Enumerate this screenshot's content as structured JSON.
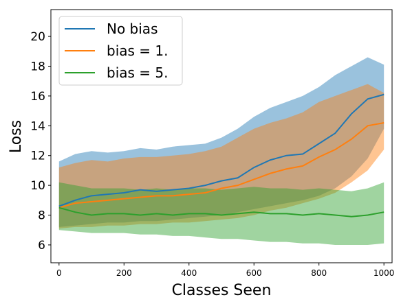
{
  "chart_data": {
    "type": "line",
    "xlabel": "Classes Seen",
    "ylabel": "Loss",
    "xlim": [
      -25,
      1025
    ],
    "ylim": [
      4.8,
      21.8
    ],
    "x_ticks": [
      0,
      200,
      400,
      600,
      800,
      1000
    ],
    "y_ticks": [
      6,
      8,
      10,
      12,
      14,
      16,
      18,
      20
    ],
    "legend_position": "top-left",
    "grid": false,
    "band": "shaded spread around each mean line",
    "x": [
      0,
      50,
      100,
      150,
      200,
      250,
      300,
      350,
      400,
      450,
      500,
      550,
      600,
      650,
      700,
      750,
      800,
      850,
      900,
      950,
      1000
    ],
    "series": [
      {
        "name": "No bias",
        "color": "#1f77b4",
        "values": [
          8.6,
          9.0,
          9.3,
          9.4,
          9.5,
          9.7,
          9.6,
          9.7,
          9.8,
          10.0,
          10.3,
          10.5,
          11.2,
          11.7,
          12.0,
          12.1,
          12.8,
          13.5,
          14.8,
          15.8,
          16.1
        ],
        "lower": [
          7.2,
          7.3,
          7.4,
          7.5,
          7.5,
          7.6,
          7.6,
          7.7,
          7.8,
          7.9,
          8.0,
          8.2,
          8.4,
          8.6,
          8.8,
          9.0,
          9.3,
          9.8,
          10.6,
          11.8,
          13.8
        ],
        "upper": [
          11.6,
          12.1,
          12.3,
          12.2,
          12.3,
          12.5,
          12.4,
          12.6,
          12.7,
          12.8,
          13.2,
          13.8,
          14.6,
          15.2,
          15.6,
          16.0,
          16.6,
          17.4,
          18.0,
          18.6,
          18.1
        ]
      },
      {
        "name": "bias = 1.",
        "color": "#ff7f0e",
        "values": [
          8.5,
          8.8,
          8.9,
          9.0,
          9.1,
          9.2,
          9.3,
          9.3,
          9.4,
          9.5,
          9.8,
          10.0,
          10.4,
          10.8,
          11.1,
          11.3,
          11.9,
          12.4,
          13.1,
          14.0,
          14.2
        ],
        "lower": [
          7.1,
          7.2,
          7.2,
          7.3,
          7.3,
          7.4,
          7.4,
          7.5,
          7.5,
          7.6,
          7.7,
          7.8,
          8.0,
          8.3,
          8.5,
          8.8,
          9.1,
          9.5,
          10.2,
          11.0,
          12.4
        ],
        "upper": [
          11.2,
          11.5,
          11.7,
          11.6,
          11.8,
          11.9,
          11.9,
          12.0,
          12.1,
          12.3,
          12.6,
          13.2,
          13.8,
          14.2,
          14.5,
          14.9,
          15.6,
          16.0,
          16.4,
          16.8,
          16.2
        ]
      },
      {
        "name": "bias = 5.",
        "color": "#2ca02c",
        "values": [
          8.5,
          8.2,
          8.0,
          8.1,
          8.1,
          8.0,
          8.1,
          8.0,
          8.1,
          8.1,
          8.0,
          8.1,
          8.2,
          8.1,
          8.1,
          8.0,
          8.1,
          8.0,
          7.9,
          8.0,
          8.2
        ],
        "lower": [
          7.0,
          6.9,
          6.8,
          6.8,
          6.8,
          6.7,
          6.7,
          6.6,
          6.6,
          6.5,
          6.4,
          6.4,
          6.3,
          6.2,
          6.2,
          6.1,
          6.1,
          6.0,
          6.0,
          6.0,
          6.1
        ],
        "upper": [
          10.2,
          10.0,
          9.8,
          9.8,
          9.8,
          9.7,
          9.8,
          9.7,
          9.8,
          9.8,
          9.7,
          9.8,
          9.9,
          9.8,
          9.8,
          9.7,
          9.8,
          9.7,
          9.6,
          9.8,
          10.2
        ]
      }
    ]
  }
}
